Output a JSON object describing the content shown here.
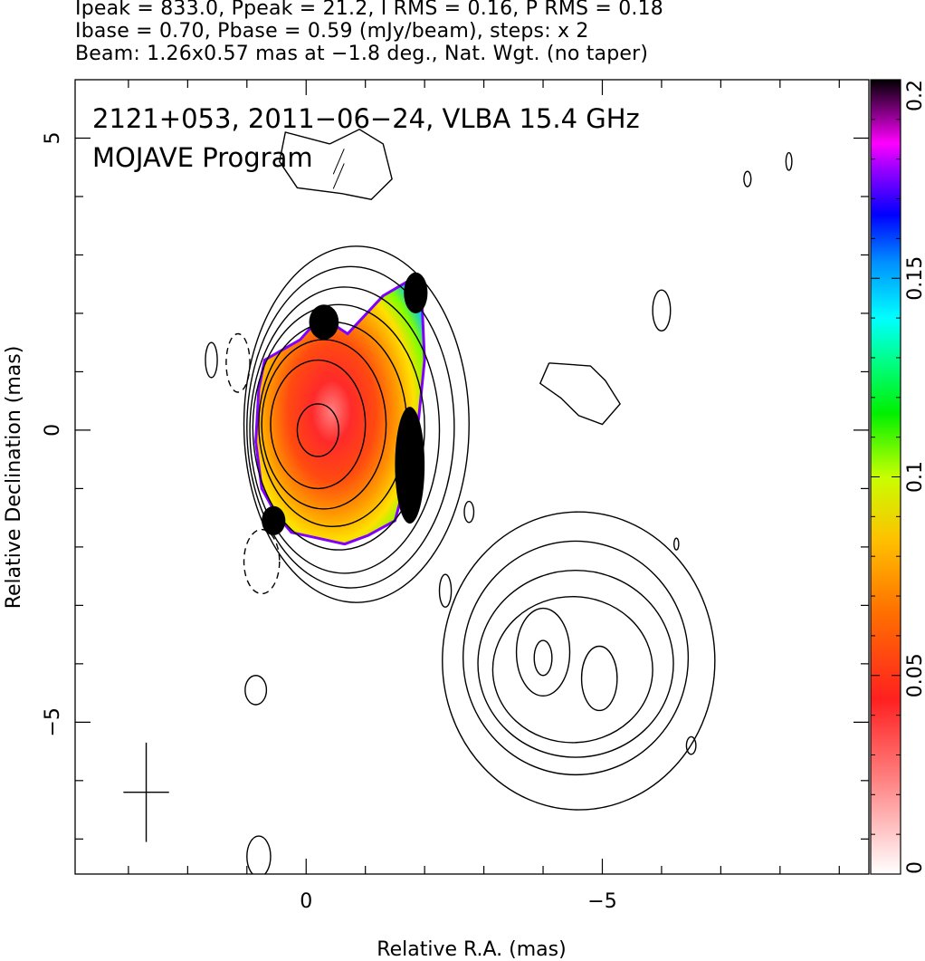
{
  "header": {
    "line1": "Ipeak = 833.0, Ppeak = 21.2, I RMS = 0.16, P RMS = 0.18",
    "line2": "Ibase = 0.70, Pbase = 0.59 (mJy/beam), steps: x 2",
    "line3": "Beam: 1.26x0.57 mas at −1.8 deg., Nat. Wgt. (no taper)"
  },
  "chart_data": {
    "type": "heatmap",
    "title": "2121+053, 2011−06−24, VLBA 15.4 GHz",
    "subtitle": "MOJAVE Program",
    "xlabel": "Relative R.A. (mas)",
    "ylabel": "Relative Declination (mas)",
    "xlim": [
      3.9,
      -9.5
    ],
    "ylim": [
      -7.6,
      6.0
    ],
    "x_ticks": [
      0,
      -5
    ],
    "x_ticklabels": [
      "0",
      "−5"
    ],
    "y_ticks": [
      5,
      0,
      -5
    ],
    "y_ticklabels": [
      "5",
      "0",
      "−5"
    ],
    "grid": false,
    "colorbar": {
      "orientation": "vertical",
      "placement": "right",
      "range": [
        0,
        0.2
      ],
      "ticks": [
        0,
        0.05,
        0.1,
        0.15,
        0.2
      ],
      "ticklabels": [
        "0",
        "0.05",
        "0.1",
        "0.15",
        "0.2"
      ],
      "colors": [
        "#ffffff",
        "#ff3030",
        "#ff8000",
        "#ffe000",
        "#00ff00",
        "#00ffff",
        "#0000ff",
        "#ff00ff",
        "#000000"
      ]
    },
    "core_component": {
      "x": 0.1,
      "y": 0.2,
      "contours": [
        {
          "x": -0.2,
          "y": 0.0,
          "rx": 0.35,
          "ry": 0.45,
          "dashed": false
        },
        {
          "x": -0.2,
          "y": 0.1,
          "rx": 0.8,
          "ry": 1.1,
          "dashed": false
        },
        {
          "x": -0.3,
          "y": 0.1,
          "rx": 1.05,
          "ry": 1.45,
          "dashed": false
        },
        {
          "x": -0.45,
          "y": 0.1,
          "rx": 1.25,
          "ry": 1.75,
          "dashed": false
        },
        {
          "x": -0.55,
          "y": 0.05,
          "rx": 1.45,
          "ry": 2.1,
          "dashed": false
        },
        {
          "x": -0.65,
          "y": 0.0,
          "rx": 1.6,
          "ry": 2.45,
          "dashed": false
        },
        {
          "x": -0.75,
          "y": 0.05,
          "rx": 1.75,
          "ry": 2.75,
          "dashed": false
        },
        {
          "x": -0.85,
          "y": 0.1,
          "rx": 1.9,
          "ry": 3.05,
          "dashed": false
        }
      ]
    },
    "southwest_component": {
      "contours": [
        {
          "x": -4.0,
          "y": -3.9,
          "rx": 0.15,
          "ry": 0.3,
          "dashed": false
        },
        {
          "x": -4.0,
          "y": -3.8,
          "rx": 0.45,
          "ry": 0.75,
          "dashed": false
        },
        {
          "x": -4.95,
          "y": -4.25,
          "rx": 0.3,
          "ry": 0.55,
          "dashed": false
        },
        {
          "x": -4.5,
          "y": -4.1,
          "rx": 1.35,
          "ry": 1.25,
          "dashed": false
        },
        {
          "x": -4.55,
          "y": -4.0,
          "rx": 1.65,
          "ry": 1.6,
          "dashed": false
        },
        {
          "x": -4.55,
          "y": -3.9,
          "rx": 1.9,
          "ry": 2.0,
          "dashed": false
        },
        {
          "x": -4.6,
          "y": -3.95,
          "rx": 2.3,
          "ry": 2.55,
          "dashed": false
        }
      ]
    },
    "small_contours": [
      {
        "x": -6.0,
        "y": 2.05,
        "rx": 0.15,
        "ry": 0.35,
        "dashed": false
      },
      {
        "x": 1.6,
        "y": 1.2,
        "rx": 0.1,
        "ry": 0.3,
        "dashed": false
      },
      {
        "x": 1.15,
        "y": 1.15,
        "rx": 0.2,
        "ry": 0.5,
        "dashed": true
      },
      {
        "x": 0.75,
        "y": -2.25,
        "rx": 0.3,
        "ry": 0.55,
        "dashed": true
      },
      {
        "x": -2.75,
        "y": -1.4,
        "rx": 0.08,
        "ry": 0.18,
        "dashed": false
      },
      {
        "x": -2.35,
        "y": -2.75,
        "rx": 0.1,
        "ry": 0.28,
        "dashed": false
      },
      {
        "x": 0.85,
        "y": -4.45,
        "rx": 0.18,
        "ry": 0.25,
        "dashed": false
      },
      {
        "x": -6.5,
        "y": -5.4,
        "rx": 0.08,
        "ry": 0.15,
        "dashed": false
      },
      {
        "x": -6.25,
        "y": -1.95,
        "rx": 0.04,
        "ry": 0.1,
        "dashed": false
      },
      {
        "x": -7.45,
        "y": 4.3,
        "rx": 0.06,
        "ry": 0.13,
        "dashed": false
      },
      {
        "x": -8.15,
        "y": 4.6,
        "rx": 0.05,
        "ry": 0.15,
        "dashed": false
      },
      {
        "x": 0.8,
        "y": -7.3,
        "rx": 0.2,
        "ry": 0.35,
        "dashed": false
      }
    ],
    "irregular_contours": [
      {
        "points": [
          [
            -0.4,
            4.9
          ],
          [
            -0.9,
            5.15
          ],
          [
            -1.3,
            4.9
          ],
          [
            -1.45,
            4.3
          ],
          [
            -1.1,
            3.95
          ],
          [
            -0.6,
            4.05
          ],
          [
            0.15,
            4.15
          ],
          [
            0.45,
            4.6
          ],
          [
            0.35,
            5.1
          ],
          [
            -0.4,
            4.9
          ]
        ]
      },
      {
        "points": [
          [
            -4.1,
            1.15
          ],
          [
            -4.8,
            1.1
          ],
          [
            -5.05,
            0.85
          ],
          [
            -5.3,
            0.45
          ],
          [
            -5.0,
            0.1
          ],
          [
            -4.6,
            0.25
          ],
          [
            -4.3,
            0.55
          ],
          [
            -3.95,
            0.8
          ],
          [
            -4.1,
            1.15
          ]
        ]
      }
    ],
    "polarization_color_map": {
      "polygon": [
        [
          0.7,
          1.2
        ],
        [
          0.1,
          1.55
        ],
        [
          -0.25,
          1.95
        ],
        [
          -0.7,
          1.65
        ],
        [
          -1.3,
          2.3
        ],
        [
          -1.8,
          2.6
        ],
        [
          -1.95,
          2.3
        ],
        [
          -2.0,
          1.2
        ],
        [
          -1.9,
          0.2
        ],
        [
          -1.7,
          -0.8
        ],
        [
          -1.5,
          -1.55
        ],
        [
          -1.05,
          -1.8
        ],
        [
          -0.65,
          -1.95
        ],
        [
          -0.2,
          -1.85
        ],
        [
          0.25,
          -1.75
        ],
        [
          0.5,
          -1.45
        ],
        [
          0.75,
          -1.0
        ],
        [
          0.85,
          -0.2
        ],
        [
          0.8,
          0.7
        ],
        [
          0.7,
          1.2
        ]
      ],
      "peak": {
        "x": -0.05,
        "y": -0.1
      }
    },
    "vector_field_region": {
      "x_range": [
        -2.9,
        -6.1
      ],
      "y_range": [
        -6.0,
        -1.4
      ]
    },
    "beam": {
      "x": 2.7,
      "y": -6.2,
      "major": 1.26,
      "minor": 0.57,
      "pa_deg": -1.8
    }
  }
}
